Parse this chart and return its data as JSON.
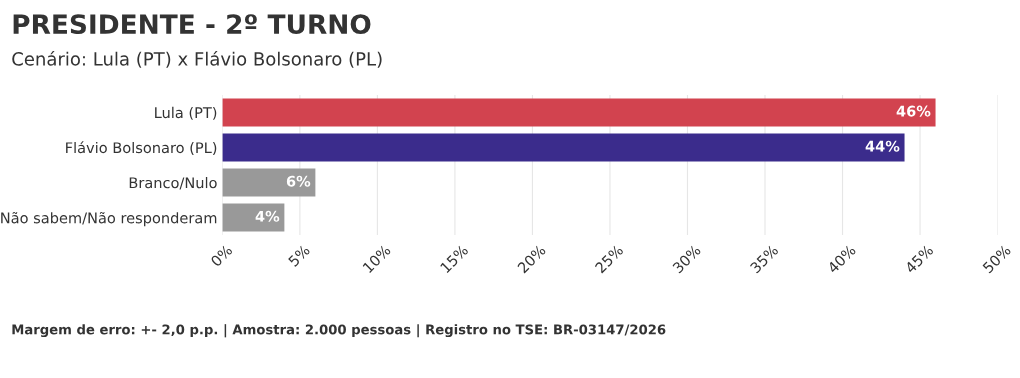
{
  "chart_data": {
    "type": "bar",
    "orientation": "horizontal",
    "title": "PRESIDENTE - 2º TURNO",
    "subtitle": "Cenário: Lula (PT) x Flávio Bolsonaro (PL)",
    "categories": [
      "Lula (PT)",
      "Flávio Bolsonaro (PL)",
      "Branco/Nulo",
      "Não sabem/Não responderam"
    ],
    "values": [
      46,
      44,
      6,
      4
    ],
    "colors": [
      "#d2434f",
      "#3b2c8c",
      "#999999",
      "#999999"
    ],
    "value_labels": [
      "46%",
      "44%",
      "6%",
      "4%"
    ],
    "xlim": [
      0,
      50
    ],
    "xticks": [
      {
        "value": 0,
        "label": "0%"
      },
      {
        "value": 5,
        "label": "5%"
      },
      {
        "value": 10,
        "label": "10%"
      },
      {
        "value": 15,
        "label": "15%"
      },
      {
        "value": 20,
        "label": "20%"
      },
      {
        "value": 25,
        "label": "25%"
      },
      {
        "value": 30,
        "label": "30%"
      },
      {
        "value": 35,
        "label": "35%"
      },
      {
        "value": 40,
        "label": "40%"
      },
      {
        "value": 45,
        "label": "45%"
      },
      {
        "value": 50,
        "label": "50%"
      }
    ],
    "grid": "x",
    "annotations": [
      "Margem de erro: +- 2,0 p.p. | Amostra: 2.000 pessoas | Registro no TSE: BR-03147/2026"
    ]
  }
}
